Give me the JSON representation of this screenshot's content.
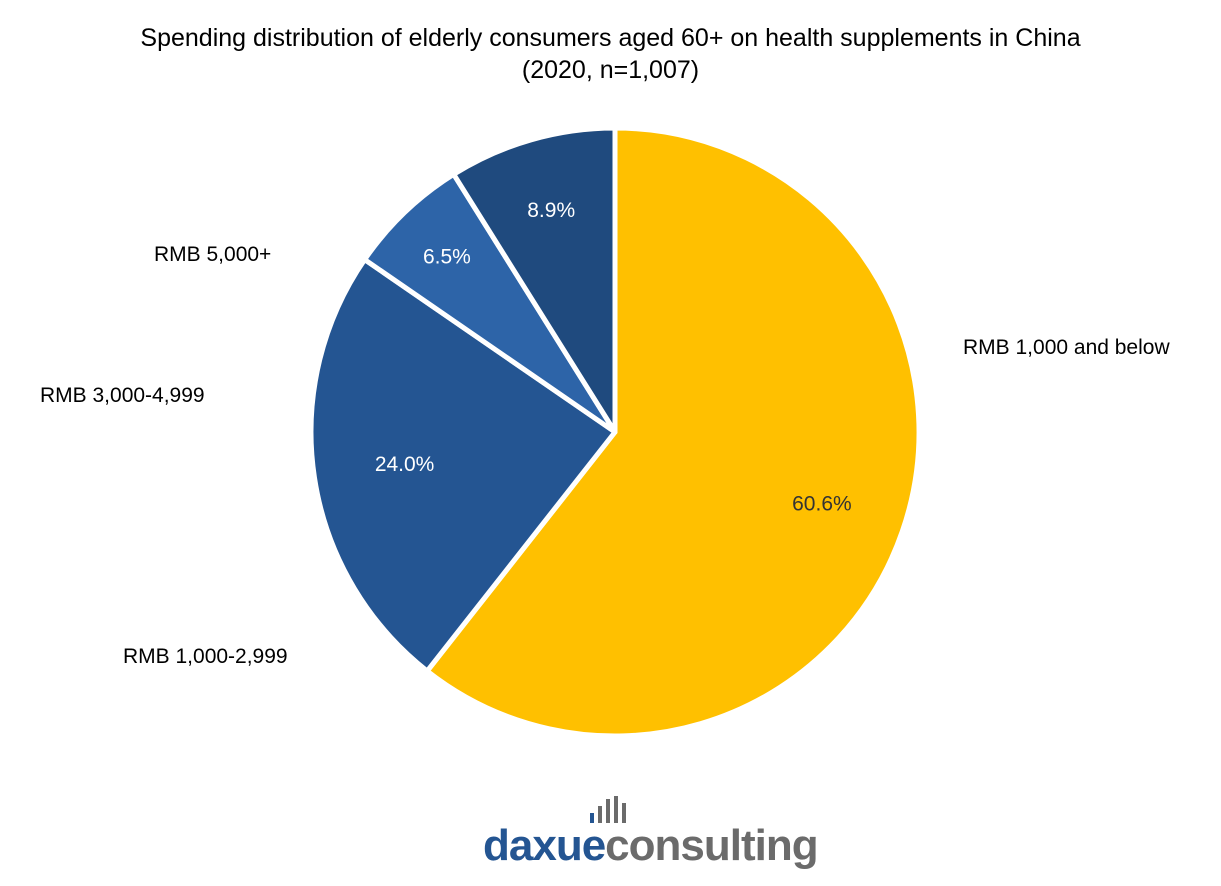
{
  "chart_data": {
    "type": "pie",
    "title": "Spending distribution of elderly consumers aged 60+ on health supplements in China",
    "subtitle": "(2020, n=1,007)",
    "slices": [
      {
        "label": "RMB 1,000 and below",
        "value": 60.6,
        "value_label": "60.6%",
        "color": "#FFC000",
        "value_label_color": "#333333"
      },
      {
        "label": "RMB 1,000-2,999",
        "value": 24.0,
        "value_label": "24.0%",
        "color": "#245592",
        "value_label_color": "#ffffff"
      },
      {
        "label": "RMB 3,000-4,999",
        "value": 6.5,
        "value_label": "6.5%",
        "color": "#2D64A8",
        "value_label_color": "#ffffff"
      },
      {
        "label": "RMB 5,000+",
        "value": 8.9,
        "value_label": "8.9%",
        "color": "#1F4A7E",
        "value_label_color": "#ffffff"
      }
    ],
    "start": "12 o'clock",
    "direction": "clockwise",
    "legend": "none (outside labels)"
  },
  "logo": {
    "text_part1": "daxue",
    "text_part2": "consulting",
    "color_part1": "#245592",
    "color_part2": "#6B6B6B"
  }
}
